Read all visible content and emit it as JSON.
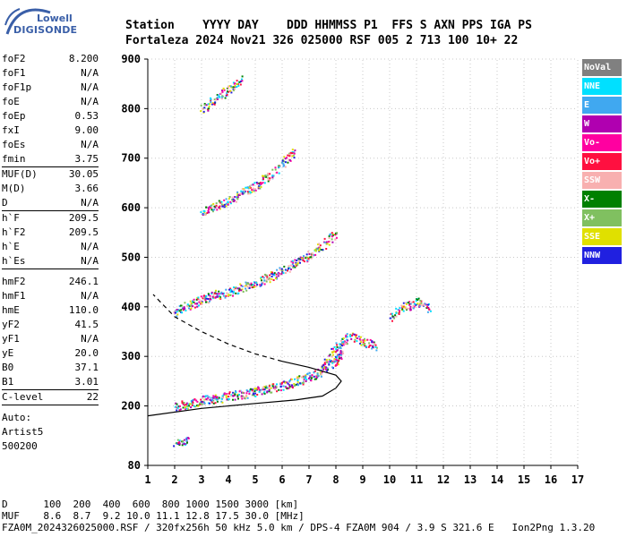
{
  "logo": {
    "line1": "Lowell",
    "line2": "DIGISONDE"
  },
  "header": {
    "labels": "Station    YYYY DAY    DDD HHMMSS P1  FFS S AXN PPS IGA PS",
    "values": "Fortaleza 2024 Nov21 326 025000 RSF 005 2 713 100 10+ 22"
  },
  "params": {
    "group1": [
      {
        "name": "foF2",
        "value": "8.200"
      },
      {
        "name": "foF1",
        "value": "N/A"
      },
      {
        "name": "foF1p",
        "value": "N/A"
      },
      {
        "name": "foE",
        "value": "N/A"
      },
      {
        "name": "foEp",
        "value": "0.53"
      },
      {
        "name": "fxI",
        "value": "9.00"
      },
      {
        "name": "foEs",
        "value": "N/A"
      },
      {
        "name": "fmin",
        "value": "3.75"
      }
    ],
    "group2": [
      {
        "name": "MUF(D)",
        "value": "30.05"
      },
      {
        "name": "M(D)",
        "value": "3.66"
      },
      {
        "name": "D",
        "value": "N/A"
      }
    ],
    "group3": [
      {
        "name": "h`F",
        "value": "209.5"
      },
      {
        "name": "h`F2",
        "value": "209.5"
      },
      {
        "name": "h`E",
        "value": "N/A"
      },
      {
        "name": "h`Es",
        "value": "N/A"
      }
    ],
    "group4": [
      {
        "name": "hmF2",
        "value": "246.1"
      },
      {
        "name": "hmF1",
        "value": "N/A"
      },
      {
        "name": "hmE",
        "value": "110.0"
      },
      {
        "name": "yF2",
        "value": "41.5"
      },
      {
        "name": "yF1",
        "value": "N/A"
      },
      {
        "name": "yE",
        "value": "20.0"
      },
      {
        "name": "B0",
        "value": "37.1"
      },
      {
        "name": "B1",
        "value": "3.01"
      }
    ],
    "clevel": {
      "name": "C-level",
      "value": "22"
    },
    "auto": [
      "Auto:",
      "Artist5",
      "500200"
    ]
  },
  "legend": [
    {
      "label": "NoVal",
      "color": "#808080"
    },
    {
      "label": "NNE",
      "color": "#00e0ff"
    },
    {
      "label": "E",
      "color": "#40a8f0"
    },
    {
      "label": "W",
      "color": "#b000b0"
    },
    {
      "label": "Vo-",
      "color": "#ff00a0"
    },
    {
      "label": "Vo+",
      "color": "#ff1040"
    },
    {
      "label": "SSW",
      "color": "#f8b0b0"
    },
    {
      "label": "X-",
      "color": "#008000"
    },
    {
      "label": "X+",
      "color": "#80c060"
    },
    {
      "label": "SSE",
      "color": "#e0e000"
    },
    {
      "label": "NNW",
      "color": "#2020e0"
    }
  ],
  "footer": {
    "line1": "D      100  200  400  600  800 1000 1500 3000 [km]",
    "line2": "MUF    8.6  8.7  9.2 10.0 11.1 12.8 17.5 30.0 [MHz]",
    "line3": "FZA0M_2024326025000.RSF / 320fx256h 50 kHz 5.0 km / DPS-4 FZA0M 904 / 3.9 S 321.6 E   Ion2Png 1.3.20"
  },
  "chart_data": {
    "type": "scatter",
    "xlim": [
      1,
      17
    ],
    "ylim": [
      80,
      900
    ],
    "x_ticks": [
      1,
      2,
      3,
      4,
      5,
      6,
      7,
      8,
      9,
      10,
      11,
      12,
      13,
      14,
      15,
      16,
      17
    ],
    "y_ticks": [
      80,
      200,
      300,
      400,
      500,
      600,
      700,
      800,
      900
    ],
    "grid": true,
    "traces": [
      {
        "x": [
          2.0,
          2.5,
          3.0,
          3.5,
          4.0,
          4.5,
          5.0,
          5.5,
          6.0,
          6.5,
          7.0,
          7.5,
          8.0,
          8.2
        ],
        "y": [
          200,
          205,
          212,
          216,
          220,
          225,
          230,
          236,
          242,
          250,
          260,
          272,
          290,
          310
        ]
      },
      {
        "x": [
          2.0,
          2.5,
          3.0,
          3.5,
          4.0,
          4.5,
          5.0,
          5.5,
          6.0,
          6.5,
          7.0,
          7.5,
          8.0
        ],
        "y": [
          390,
          405,
          415,
          425,
          430,
          440,
          450,
          460,
          475,
          490,
          505,
          525,
          550
        ]
      },
      {
        "x": [
          3.0,
          3.5,
          4.0,
          4.5,
          5.0,
          5.5,
          6.0,
          6.5
        ],
        "y": [
          590,
          605,
          615,
          630,
          645,
          665,
          690,
          720
        ]
      },
      {
        "x": [
          3.0,
          3.5,
          4.0,
          4.5
        ],
        "y": [
          800,
          820,
          840,
          860
        ]
      },
      {
        "x": [
          7.5,
          8.0,
          8.5,
          9.0,
          9.5
        ],
        "y": [
          280,
          320,
          340,
          330,
          320
        ]
      },
      {
        "x": [
          10.0,
          10.5,
          11.0,
          11.5
        ],
        "y": [
          380,
          400,
          410,
          395
        ]
      },
      {
        "x": [
          2.0,
          2.5
        ],
        "y": [
          125,
          130
        ]
      }
    ],
    "profile": {
      "x": [
        1.0,
        3.0,
        5.0,
        6.5,
        7.5,
        8.0,
        8.2,
        8.0,
        7.0,
        6.0,
        5.0,
        4.0,
        3.0,
        2.0,
        1.2
      ],
      "y": [
        180,
        195,
        205,
        212,
        220,
        236,
        250,
        262,
        278,
        290,
        305,
        325,
        350,
        380,
        425
      ]
    }
  }
}
